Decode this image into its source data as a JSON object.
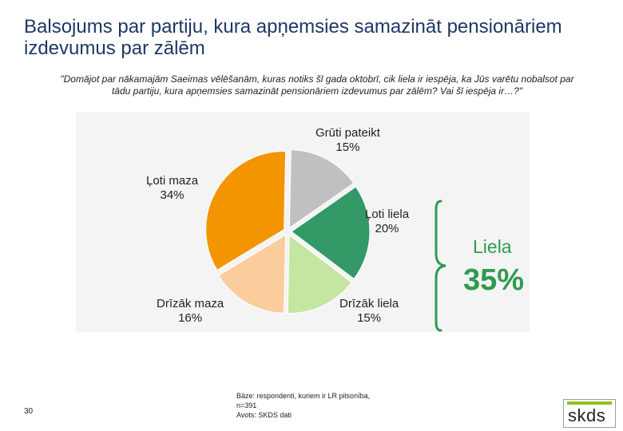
{
  "header": {
    "title": "Balsojums par partiju, kura apņemsies samazināt pensionāriem izdevumus par zālēm",
    "question": "\"Domājot par nākamajām Saeimas vēlēšanām, kuras notiks šī gada oktobrī, cik liela ir iespēja, ka Jūs varētu nobalsot par tādu partiju, kura apņemsies samazināt pensionāriem izdevumus par zālēm? Vai šī iespēja ir…?\""
  },
  "chart_data": {
    "type": "pie",
    "unit": "%",
    "slices": [
      {
        "label": "Grūti pateikt",
        "value": 15,
        "value_label": "15%",
        "color": "#c0c0c0"
      },
      {
        "label": "Ļoti liela",
        "value": 20,
        "value_label": "20%",
        "color": "#339966"
      },
      {
        "label": "Drīzāk liela",
        "value": 15,
        "value_label": "15%",
        "color": "#c4e6a1"
      },
      {
        "label": "Drīzāk maza",
        "value": 16,
        "value_label": "16%",
        "color": "#fbcd9c"
      },
      {
        "label": "Ļoti maza",
        "value": 34,
        "value_label": "34%",
        "color": "#f39500"
      }
    ],
    "group": {
      "label": "Liela",
      "value": 35,
      "value_label": "35%",
      "color": "#2e9b4f"
    }
  },
  "footer": {
    "page_number": "30",
    "note_lines": [
      "Bāze: respondenti, kuriem ir LR pilsonība,",
      "n=391",
      "Avots: SKDS dati"
    ],
    "logo_text": "skds"
  }
}
